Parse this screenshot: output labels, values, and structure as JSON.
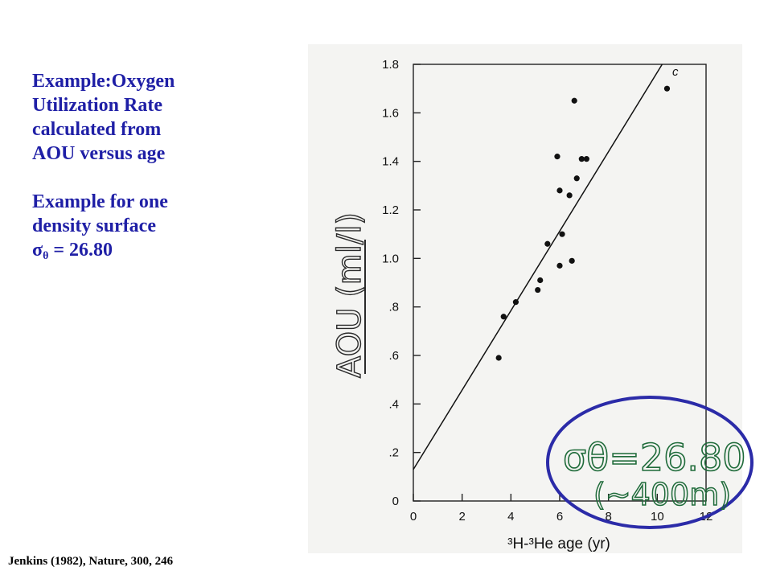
{
  "text": {
    "line1": "Example:Oxygen",
    "line2": "Utilization Rate",
    "line3": "calculated from",
    "line4": "AOU versus age",
    "line5": "Example for one",
    "line6": "density surface",
    "sigma_symbol": "σ",
    "sigma_sub": "θ",
    "sigma_value": " = 26.80",
    "citation": "Jenkins (1982), Nature, 300, 246"
  },
  "colors": {
    "text_accent": "#1f1fa6",
    "circle": "#2b2ba8",
    "handwriting": "#1f6b3a"
  },
  "chart_data": {
    "type": "scatter",
    "xlabel": "³H-³He age (yr)",
    "ylabel_handwritten": "AOU (ml/l)",
    "corner_label": "c",
    "xlim": [
      0,
      12
    ],
    "ylim": [
      0,
      1.8
    ],
    "x_ticks": [
      0,
      2,
      4,
      6,
      8,
      10,
      12
    ],
    "x_tick_labels": [
      "0",
      "2",
      "4",
      "6",
      "8",
      "10",
      "12"
    ],
    "y_ticks": [
      0,
      0.2,
      0.4,
      0.6,
      0.8,
      1.0,
      1.2,
      1.4,
      1.6,
      1.8
    ],
    "y_tick_labels": [
      "0",
      ".2",
      ".4",
      ".6",
      ".8",
      "1.0",
      "1.2",
      "1.4",
      "1.6",
      "1.8"
    ],
    "points": [
      {
        "x": 3.5,
        "y": 0.59
      },
      {
        "x": 3.7,
        "y": 0.76
      },
      {
        "x": 4.2,
        "y": 0.82
      },
      {
        "x": 5.1,
        "y": 0.87
      },
      {
        "x": 5.2,
        "y": 0.91
      },
      {
        "x": 5.5,
        "y": 1.06
      },
      {
        "x": 5.9,
        "y": 1.42
      },
      {
        "x": 6.0,
        "y": 1.28
      },
      {
        "x": 6.0,
        "y": 0.97
      },
      {
        "x": 6.1,
        "y": 1.1
      },
      {
        "x": 6.4,
        "y": 1.26
      },
      {
        "x": 6.5,
        "y": 0.99
      },
      {
        "x": 6.6,
        "y": 1.65
      },
      {
        "x": 6.7,
        "y": 1.33
      },
      {
        "x": 6.9,
        "y": 1.41
      },
      {
        "x": 7.1,
        "y": 1.41
      },
      {
        "x": 10.4,
        "y": 1.7
      }
    ],
    "fit_line": {
      "x0": 0,
      "y0": 0.13,
      "x1": 10.2,
      "y1": 1.8
    },
    "annotation": {
      "line1": "σθ=26.80",
      "line2": "(~400m)"
    }
  }
}
